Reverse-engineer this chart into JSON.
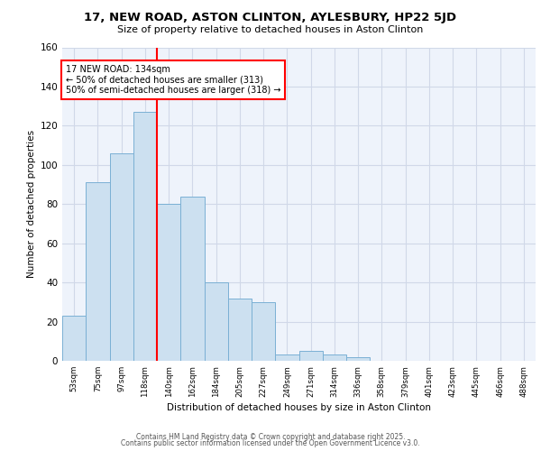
{
  "title": "17, NEW ROAD, ASTON CLINTON, AYLESBURY, HP22 5JD",
  "subtitle": "Size of property relative to detached houses in Aston Clinton",
  "xlabel": "Distribution of detached houses by size in Aston Clinton",
  "ylabel": "Number of detached properties",
  "bar_labels": [
    "53sqm",
    "75sqm",
    "97sqm",
    "118sqm",
    "140sqm",
    "162sqm",
    "184sqm",
    "205sqm",
    "227sqm",
    "249sqm",
    "271sqm",
    "314sqm",
    "336sqm",
    "358sqm",
    "379sqm",
    "401sqm",
    "423sqm",
    "445sqm",
    "466sqm",
    "488sqm"
  ],
  "bar_values": [
    23,
    91,
    106,
    127,
    80,
    84,
    40,
    32,
    30,
    3,
    5,
    3,
    2,
    0,
    0,
    0,
    0,
    0,
    0,
    0
  ],
  "bar_color": "#cce0f0",
  "bar_edge_color": "#7ab0d4",
  "vline_color": "red",
  "annotation_text": "17 NEW ROAD: 134sqm\n← 50% of detached houses are smaller (313)\n50% of semi-detached houses are larger (318) →",
  "annotation_box_color": "white",
  "annotation_box_edge_color": "red",
  "ylim": [
    0,
    160
  ],
  "yticks": [
    0,
    20,
    40,
    60,
    80,
    100,
    120,
    140,
    160
  ],
  "grid_color": "#d0d8e8",
  "background_color": "#eef3fb",
  "footer_line1": "Contains HM Land Registry data © Crown copyright and database right 2025.",
  "footer_line2": "Contains public sector information licensed under the Open Government Licence v3.0."
}
